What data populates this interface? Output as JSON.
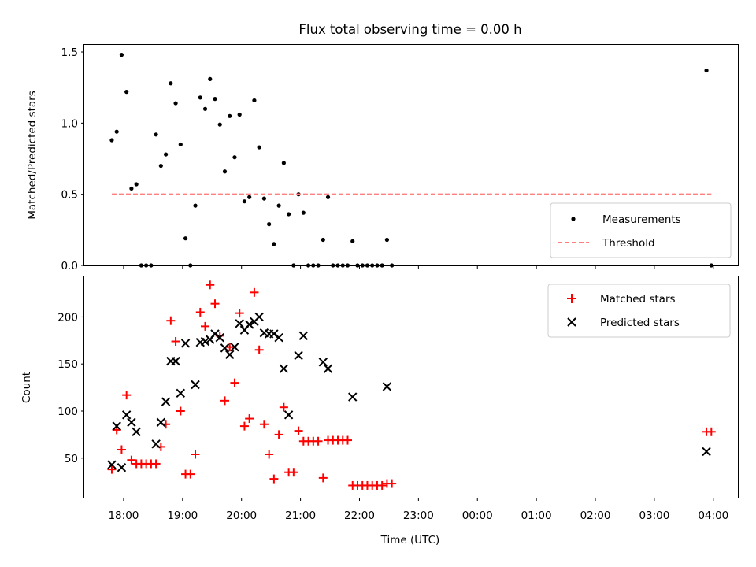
{
  "chart_data": [
    {
      "type": "scatter",
      "title": "Flux total observing time = 0.00 h",
      "xlabel": "",
      "ylabel": "Matched/Predicted stars",
      "xlim": [
        "17:20",
        "04:25"
      ],
      "ylim": [
        0,
        1.55
      ],
      "yticks": [
        0.0,
        0.5,
        1.0,
        1.5
      ],
      "ytick_labels": [
        "0.0",
        "0.5",
        "1.0",
        "1.5"
      ],
      "legend": {
        "placement": "lower-right",
        "entries": [
          {
            "label": "Measurements",
            "marker": "dot",
            "color": "#000000"
          },
          {
            "label": "Threshold",
            "marker": "dashed-line",
            "color": "#ff7f7f"
          }
        ]
      },
      "series": [
        {
          "name": "Measurements",
          "marker": "dot",
          "color": "#000000",
          "points": [
            [
              "17:48",
              0.88
            ],
            [
              "17:53",
              0.94
            ],
            [
              "17:58",
              1.48
            ],
            [
              "18:03",
              1.22
            ],
            [
              "18:08",
              0.54
            ],
            [
              "18:13",
              0.57
            ],
            [
              "18:18",
              0.0
            ],
            [
              "18:23",
              0.0
            ],
            [
              "18:28",
              0.0
            ],
            [
              "18:33",
              0.92
            ],
            [
              "18:38",
              0.7
            ],
            [
              "18:43",
              0.78
            ],
            [
              "18:48",
              1.28
            ],
            [
              "18:53",
              1.14
            ],
            [
              "18:58",
              0.85
            ],
            [
              "19:03",
              0.19
            ],
            [
              "19:08",
              0.0
            ],
            [
              "19:13",
              0.42
            ],
            [
              "19:18",
              1.18
            ],
            [
              "19:23",
              1.1
            ],
            [
              "19:28",
              1.31
            ],
            [
              "19:33",
              1.17
            ],
            [
              "19:38",
              0.99
            ],
            [
              "19:43",
              0.66
            ],
            [
              "19:48",
              1.05
            ],
            [
              "19:53",
              0.76
            ],
            [
              "19:58",
              1.06
            ],
            [
              "20:03",
              0.45
            ],
            [
              "20:08",
              0.48
            ],
            [
              "20:13",
              1.16
            ],
            [
              "20:18",
              0.83
            ],
            [
              "20:23",
              0.47
            ],
            [
              "20:28",
              0.29
            ],
            [
              "20:33",
              0.15
            ],
            [
              "20:38",
              0.42
            ],
            [
              "20:43",
              0.72
            ],
            [
              "20:48",
              0.36
            ],
            [
              "20:53",
              0.0
            ],
            [
              "20:58",
              0.5
            ],
            [
              "21:03",
              0.37
            ],
            [
              "21:08",
              0.0
            ],
            [
              "21:13",
              0.0
            ],
            [
              "21:18",
              0.0
            ],
            [
              "21:23",
              0.18
            ],
            [
              "21:28",
              0.48
            ],
            [
              "21:33",
              0.0
            ],
            [
              "21:38",
              0.0
            ],
            [
              "21:43",
              0.0
            ],
            [
              "21:48",
              0.0
            ],
            [
              "21:53",
              0.17
            ],
            [
              "21:58",
              0.0
            ],
            [
              "22:03",
              0.0
            ],
            [
              "22:08",
              0.0
            ],
            [
              "22:13",
              0.0
            ],
            [
              "22:18",
              0.0
            ],
            [
              "22:23",
              0.0
            ],
            [
              "22:28",
              0.18
            ],
            [
              "22:33",
              0.0
            ],
            [
              "03:53",
              1.37
            ],
            [
              "03:58",
              0.0
            ]
          ]
        },
        {
          "name": "Threshold",
          "marker": "dashed-line",
          "color": "#ff7f7f",
          "points": [
            [
              "17:48",
              0.5
            ],
            [
              "03:58",
              0.5
            ]
          ]
        }
      ]
    },
    {
      "type": "scatter",
      "title": "",
      "xlabel": "Time (UTC)",
      "ylabel": "Count",
      "xlim": [
        "17:20",
        "04:25"
      ],
      "ylim": [
        8,
        243
      ],
      "yticks": [
        50,
        100,
        150,
        200
      ],
      "ytick_labels": [
        "50",
        "100",
        "150",
        "200"
      ],
      "xticks": [
        "18:00",
        "19:00",
        "20:00",
        "21:00",
        "22:00",
        "23:00",
        "00:00",
        "01:00",
        "02:00",
        "03:00",
        "04:00"
      ],
      "legend": {
        "placement": "upper-right",
        "entries": [
          {
            "label": "Matched stars",
            "marker": "plus",
            "color": "#ff0000"
          },
          {
            "label": "Predicted stars",
            "marker": "x",
            "color": "#000000"
          }
        ]
      },
      "series": [
        {
          "name": "Matched stars",
          "marker": "plus",
          "color": "#ff0000",
          "points": [
            [
              "17:48",
              38
            ],
            [
              "17:53",
              80
            ],
            [
              "17:58",
              59
            ],
            [
              "18:03",
              117
            ],
            [
              "18:08",
              48
            ],
            [
              "18:13",
              44
            ],
            [
              "18:18",
              44
            ],
            [
              "18:23",
              44
            ],
            [
              "18:28",
              44
            ],
            [
              "18:33",
              44
            ],
            [
              "18:38",
              62
            ],
            [
              "18:43",
              86
            ],
            [
              "18:48",
              196
            ],
            [
              "18:53",
              174
            ],
            [
              "18:58",
              100
            ],
            [
              "19:03",
              33
            ],
            [
              "19:08",
              33
            ],
            [
              "19:13",
              54
            ],
            [
              "19:18",
              205
            ],
            [
              "19:23",
              190
            ],
            [
              "19:28",
              234
            ],
            [
              "19:33",
              214
            ],
            [
              "19:38",
              180
            ],
            [
              "19:43",
              111
            ],
            [
              "19:48",
              168
            ],
            [
              "19:53",
              130
            ],
            [
              "19:58",
              204
            ],
            [
              "20:03",
              84
            ],
            [
              "20:08",
              92
            ],
            [
              "20:13",
              226
            ],
            [
              "20:18",
              165
            ],
            [
              "20:23",
              86
            ],
            [
              "20:28",
              54
            ],
            [
              "20:33",
              28
            ],
            [
              "20:38",
              75
            ],
            [
              "20:43",
              104
            ],
            [
              "20:48",
              35
            ],
            [
              "20:53",
              35
            ],
            [
              "20:58",
              79
            ],
            [
              "21:03",
              68
            ],
            [
              "21:08",
              68
            ],
            [
              "21:13",
              68
            ],
            [
              "21:18",
              68
            ],
            [
              "21:23",
              29
            ],
            [
              "21:28",
              69
            ],
            [
              "21:33",
              69
            ],
            [
              "21:38",
              69
            ],
            [
              "21:43",
              69
            ],
            [
              "21:48",
              69
            ],
            [
              "21:53",
              21
            ],
            [
              "21:58",
              21
            ],
            [
              "22:03",
              21
            ],
            [
              "22:08",
              21
            ],
            [
              "22:13",
              21
            ],
            [
              "22:18",
              21
            ],
            [
              "22:23",
              21
            ],
            [
              "22:28",
              23
            ],
            [
              "22:33",
              23
            ],
            [
              "03:53",
              78
            ],
            [
              "03:58",
              78
            ]
          ]
        },
        {
          "name": "Predicted stars",
          "marker": "x",
          "color": "#000000",
          "points": [
            [
              "17:48",
              43
            ],
            [
              "17:53",
              84
            ],
            [
              "17:58",
              40
            ],
            [
              "18:03",
              96
            ],
            [
              "18:08",
              88
            ],
            [
              "18:13",
              78
            ],
            [
              "18:33",
              65
            ],
            [
              "18:38",
              88
            ],
            [
              "18:43",
              110
            ],
            [
              "18:48",
              153
            ],
            [
              "18:53",
              153
            ],
            [
              "18:58",
              119
            ],
            [
              "19:03",
              172
            ],
            [
              "19:13",
              128
            ],
            [
              "19:18",
              173
            ],
            [
              "19:23",
              174
            ],
            [
              "19:28",
              176
            ],
            [
              "19:33",
              182
            ],
            [
              "19:38",
              178
            ],
            [
              "19:43",
              167
            ],
            [
              "19:48",
              160
            ],
            [
              "19:53",
              168
            ],
            [
              "19:58",
              193
            ],
            [
              "20:03",
              186
            ],
            [
              "20:08",
              192
            ],
            [
              "20:13",
              195
            ],
            [
              "20:18",
              200
            ],
            [
              "20:23",
              183
            ],
            [
              "20:28",
              182
            ],
            [
              "20:33",
              182
            ],
            [
              "20:38",
              178
            ],
            [
              "20:43",
              145
            ],
            [
              "20:48",
              96
            ],
            [
              "20:58",
              159
            ],
            [
              "21:03",
              180
            ],
            [
              "21:23",
              152
            ],
            [
              "21:28",
              145
            ],
            [
              "21:53",
              115
            ],
            [
              "22:28",
              126
            ],
            [
              "03:53",
              57
            ]
          ]
        }
      ]
    }
  ]
}
